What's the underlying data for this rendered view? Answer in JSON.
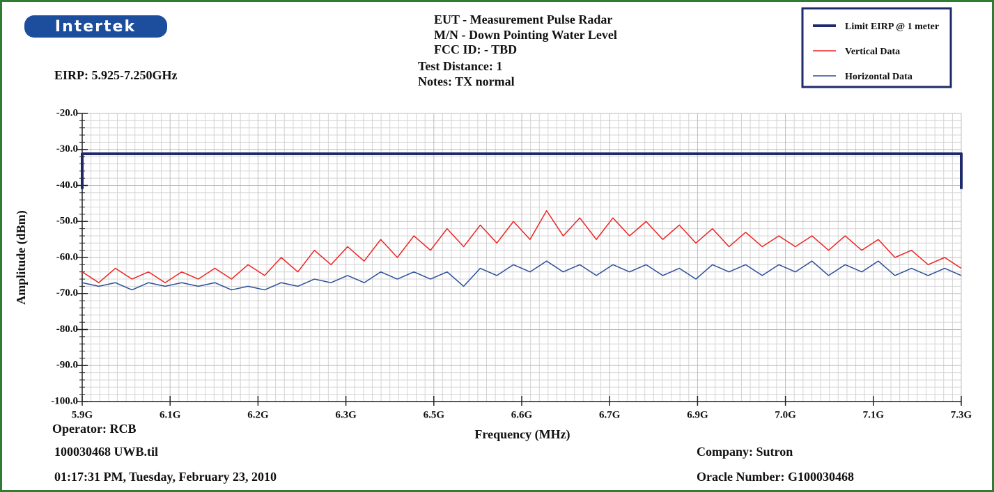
{
  "chart_data": {
    "type": "line",
    "logo": "Intertek",
    "header_lines": [
      "EUT - Measurement Pulse Radar",
      "M/N - Down Pointing Water Level",
      "FCC ID: - TBD",
      "Test Distance: 1",
      "Notes: TX normal"
    ],
    "subtitle": "EIRP: 5.925-7.250GHz",
    "xlabel": "Frequency (MHz)",
    "ylabel": "Amplitude (dBm)",
    "footer": {
      "operator": "Operator: RCB",
      "file": "100030468 UWB.til",
      "date": "01:17:31 PM, Tuesday, February 23, 2010",
      "company": "Company: Sutron",
      "oracle": "Oracle Number: G100030468"
    },
    "xlim": [
      5.925,
      7.25
    ],
    "xticks": [
      {
        "value": 5.925,
        "label": "5.9G"
      },
      {
        "value": 6.0575,
        "label": "6.1G"
      },
      {
        "value": 6.19,
        "label": "6.2G"
      },
      {
        "value": 6.3225,
        "label": "6.3G"
      },
      {
        "value": 6.455,
        "label": "6.5G"
      },
      {
        "value": 6.5875,
        "label": "6.6G"
      },
      {
        "value": 6.72,
        "label": "6.7G"
      },
      {
        "value": 6.8525,
        "label": "6.9G"
      },
      {
        "value": 6.985,
        "label": "7.0G"
      },
      {
        "value": 7.1175,
        "label": "7.1G"
      },
      {
        "value": 7.25,
        "label": "7.3G"
      }
    ],
    "ylim": [
      -100,
      -20
    ],
    "yticks": [
      {
        "value": -100,
        "label": "-100.0"
      },
      {
        "value": -90,
        "label": "-90.0"
      },
      {
        "value": -80,
        "label": "-80.0"
      },
      {
        "value": -70,
        "label": "-70.0"
      },
      {
        "value": -60,
        "label": "-60.0"
      },
      {
        "value": -50,
        "label": "-50.0"
      },
      {
        "value": -40,
        "label": "-40.0"
      },
      {
        "value": -30,
        "label": "-30.0"
      },
      {
        "value": -20,
        "label": "-20.0"
      }
    ],
    "grid": true,
    "legend": "top-right",
    "x": [
      5.925,
      5.95,
      5.975,
      6.0,
      6.025,
      6.05,
      6.075,
      6.1,
      6.125,
      6.15,
      6.175,
      6.2,
      6.225,
      6.25,
      6.275,
      6.3,
      6.325,
      6.35,
      6.375,
      6.4,
      6.425,
      6.45,
      6.475,
      6.5,
      6.525,
      6.55,
      6.575,
      6.6,
      6.625,
      6.65,
      6.675,
      6.7,
      6.725,
      6.75,
      6.775,
      6.8,
      6.825,
      6.85,
      6.875,
      6.9,
      6.925,
      6.95,
      6.975,
      7.0,
      7.025,
      7.05,
      7.075,
      7.1,
      7.125,
      7.15,
      7.175,
      7.2,
      7.225,
      7.25
    ],
    "series": [
      {
        "name": "Limit EIRP @ 1 meter",
        "color": "#1f2a6b",
        "width": 4,
        "x": [
          5.925,
          5.925,
          7.25,
          7.25
        ],
        "values": [
          -41,
          -31.2,
          -31.2,
          -41
        ]
      },
      {
        "name": "Vertical Data",
        "color": "#ee2222",
        "width": 1.5,
        "values": [
          -64,
          -67,
          -63,
          -66,
          -64,
          -67,
          -64,
          -66,
          -63,
          -66,
          -62,
          -65,
          -60,
          -64,
          -58,
          -62,
          -57,
          -61,
          -55,
          -60,
          -54,
          -58,
          -52,
          -57,
          -51,
          -56,
          -50,
          -55,
          -47,
          -54,
          -49,
          -55,
          -49,
          -54,
          -50,
          -55,
          -51,
          -56,
          -52,
          -57,
          -53,
          -57,
          -54,
          -57,
          -54,
          -58,
          -54,
          -58,
          -55,
          -60,
          -58,
          -62,
          -60,
          -63
        ]
      },
      {
        "name": "Horizontal Data",
        "color": "#2a4d9b",
        "width": 1.5,
        "values": [
          -67,
          -68,
          -67,
          -69,
          -67,
          -68,
          -67,
          -68,
          -67,
          -69,
          -68,
          -69,
          -67,
          -68,
          -66,
          -67,
          -65,
          -67,
          -64,
          -66,
          -64,
          -66,
          -64,
          -68,
          -63,
          -65,
          -62,
          -64,
          -61,
          -64,
          -62,
          -65,
          -62,
          -64,
          -62,
          -65,
          -63,
          -66,
          -62,
          -64,
          -62,
          -65,
          -62,
          -64,
          -61,
          -65,
          -62,
          -64,
          -61,
          -65,
          -63,
          -65,
          -63,
          -65
        ]
      }
    ]
  }
}
